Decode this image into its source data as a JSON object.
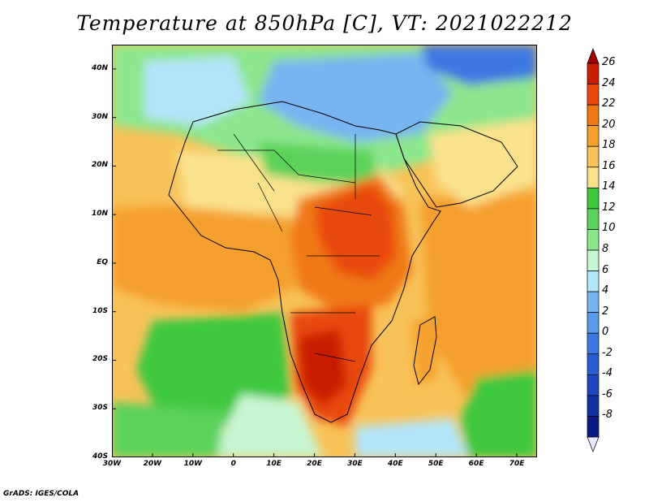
{
  "title": "Temperature at 850hPa [C], VT: 2021022212",
  "credit": "GrADS: IGES/COLA",
  "map": {
    "lon_range": [
      -30,
      75
    ],
    "lat_range": [
      -40,
      45
    ],
    "lat_ticks": [
      {
        "value": 40,
        "label": "40N"
      },
      {
        "value": 30,
        "label": "30N"
      },
      {
        "value": 20,
        "label": "20N"
      },
      {
        "value": 10,
        "label": "10N"
      },
      {
        "value": 0,
        "label": "EQ"
      },
      {
        "value": -10,
        "label": "10S"
      },
      {
        "value": -20,
        "label": "20S"
      },
      {
        "value": -30,
        "label": "30S"
      },
      {
        "value": -40,
        "label": "40S"
      }
    ],
    "lon_ticks": [
      {
        "value": -30,
        "label": "30W"
      },
      {
        "value": -20,
        "label": "20W"
      },
      {
        "value": -10,
        "label": "10W"
      },
      {
        "value": 0,
        "label": "0"
      },
      {
        "value": 10,
        "label": "10E"
      },
      {
        "value": 20,
        "label": "20E"
      },
      {
        "value": 30,
        "label": "30E"
      },
      {
        "value": 40,
        "label": "40E"
      },
      {
        "value": 50,
        "label": "50E"
      },
      {
        "value": 60,
        "label": "60E"
      },
      {
        "value": 70,
        "label": "70E"
      }
    ]
  },
  "colorbar": {
    "levels": [
      {
        "label": "26",
        "color": "#c81e00"
      },
      {
        "label": "24",
        "color": "#e84a0c"
      },
      {
        "label": "22",
        "color": "#f07814"
      },
      {
        "label": "20",
        "color": "#f5a02d"
      },
      {
        "label": "18",
        "color": "#f8c35a"
      },
      {
        "label": "16",
        "color": "#fae28c"
      },
      {
        "label": "14",
        "color": "#3ec83e"
      },
      {
        "label": "12",
        "color": "#5ad25a"
      },
      {
        "label": "10",
        "color": "#8ce68c"
      },
      {
        "label": "8",
        "color": "#c8f5d2"
      },
      {
        "label": "6",
        "color": "#b4e6fa"
      },
      {
        "label": "4",
        "color": "#78b4f0"
      },
      {
        "label": "2",
        "color": "#5a9aeb"
      },
      {
        "label": "0",
        "color": "#3c78e1"
      },
      {
        "label": "-2",
        "color": "#2a5cd2"
      },
      {
        "label": "-4",
        "color": "#1e46be"
      },
      {
        "label": "-6",
        "color": "#1430a0"
      },
      {
        "label": "-8",
        "color": "#0a1a82"
      }
    ],
    "top_arrow_color": "#a00000",
    "bottom_arrow_color": "#e6e6ff"
  }
}
